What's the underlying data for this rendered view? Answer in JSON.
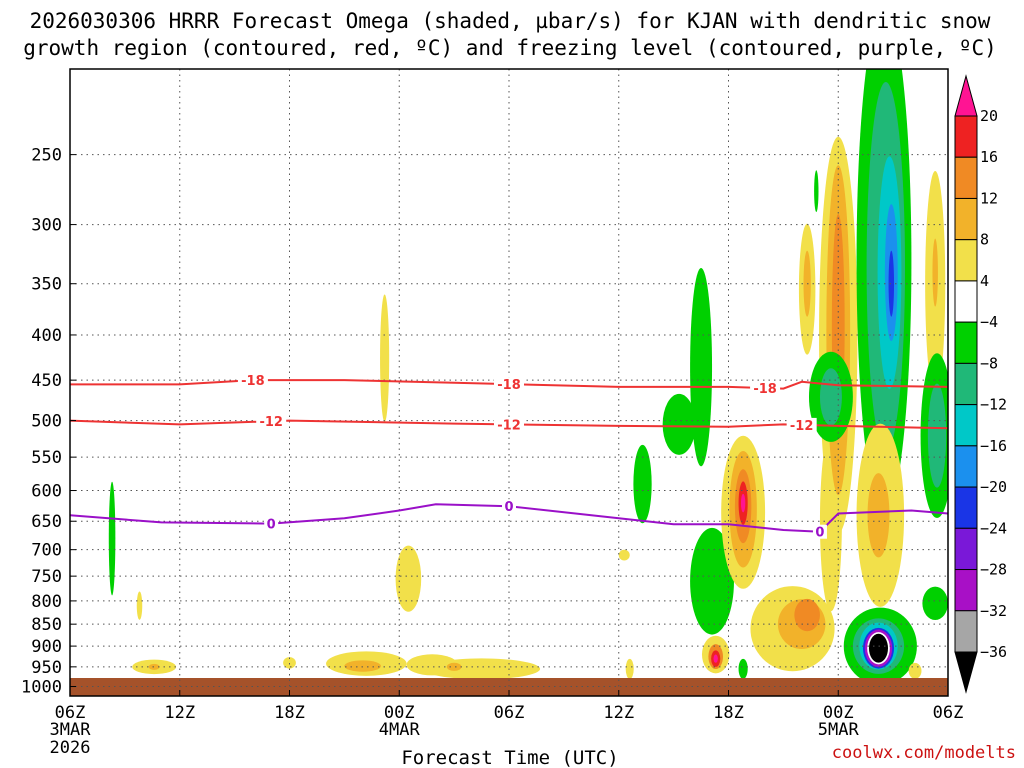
{
  "chart_data": {
    "type": "heatmap",
    "title_line1": "2026030306 HRRR Forecast Omega (shaded, µbar/s) for KJAN with dendritic snow",
    "title_line2": "growth region (contoured, red, ºC) and freezing level (contoured, purple, ºC)",
    "xlabel": "Forecast Time (UTC)",
    "credit": "coolwx.com/modelts",
    "x_hours": [
      0,
      6,
      12,
      18,
      24,
      30,
      36,
      42,
      48
    ],
    "x_ticks": [
      {
        "label": "06Z",
        "sub1": "3MAR",
        "sub2": "2026"
      },
      {
        "label": "12Z",
        "sub1": "",
        "sub2": ""
      },
      {
        "label": "18Z",
        "sub1": "",
        "sub2": ""
      },
      {
        "label": "00Z",
        "sub1": "4MAR",
        "sub2": ""
      },
      {
        "label": "06Z",
        "sub1": "",
        "sub2": ""
      },
      {
        "label": "12Z",
        "sub1": "",
        "sub2": ""
      },
      {
        "label": "18Z",
        "sub1": "",
        "sub2": ""
      },
      {
        "label": "00Z",
        "sub1": "5MAR",
        "sub2": ""
      },
      {
        "label": "06Z",
        "sub1": "",
        "sub2": ""
      }
    ],
    "y_levels_hpa": [
      1000,
      950,
      900,
      850,
      800,
      750,
      700,
      650,
      600,
      550,
      500,
      450,
      400,
      350,
      300,
      250
    ],
    "y_labels": [
      "1000",
      "950",
      "900",
      "850",
      "800",
      "750",
      "700",
      "650",
      "600",
      "550",
      "500",
      "450",
      "400",
      "350",
      "300",
      "250"
    ],
    "pressure_range_hpa": [
      1025,
      200
    ],
    "colorbar": {
      "labels": [
        "20",
        "16",
        "12",
        "8",
        "4",
        "−4",
        "−8",
        "−12",
        "−16",
        "−20",
        "−24",
        "−28",
        "−32",
        "−36"
      ],
      "colors": [
        "#ff1493",
        "#ee2222",
        "#f08a24",
        "#f2b22a",
        "#f2e04a",
        "#ffffff",
        "#00d000",
        "#20b878",
        "#00c8c8",
        "#1b90ee",
        "#1a35e6",
        "#7a18d8",
        "#a810c6",
        "#a6a6a6",
        "#000000"
      ]
    },
    "contours": [
      {
        "name": "-18C (red)",
        "label": "-18",
        "color": "#ee3333",
        "points": [
          [
            0,
            455
          ],
          [
            6,
            455
          ],
          [
            10,
            450
          ],
          [
            15,
            450
          ],
          [
            21,
            453
          ],
          [
            30,
            458
          ],
          [
            36,
            458
          ],
          [
            39,
            460
          ],
          [
            40,
            452
          ],
          [
            42,
            456
          ],
          [
            48,
            458
          ]
        ],
        "label_hours": [
          10,
          24,
          38
        ]
      },
      {
        "name": "-12C (red)",
        "label": "-12",
        "color": "#ee3333",
        "points": [
          [
            0,
            500
          ],
          [
            6,
            505
          ],
          [
            12,
            500
          ],
          [
            21,
            504
          ],
          [
            30,
            507
          ],
          [
            36,
            508
          ],
          [
            39,
            505
          ],
          [
            42,
            507
          ],
          [
            48,
            510
          ]
        ],
        "label_hours": [
          11,
          24,
          40
        ]
      },
      {
        "name": "0C freezing level (purple)",
        "label": "0",
        "color": "#9a10c8",
        "points": [
          [
            0,
            640
          ],
          [
            5,
            652
          ],
          [
            11,
            654
          ],
          [
            15,
            645
          ],
          [
            18,
            632
          ],
          [
            20,
            622
          ],
          [
            24,
            625
          ],
          [
            30,
            645
          ],
          [
            33,
            655
          ],
          [
            36,
            655
          ],
          [
            39,
            665
          ],
          [
            41,
            668
          ],
          [
            42,
            637
          ],
          [
            46,
            632
          ],
          [
            48,
            637
          ]
        ],
        "label_hours": [
          11,
          24,
          41
        ]
      }
    ],
    "omega_blobs": [
      {
        "t": 2.3,
        "p": 680,
        "rx": 0.18,
        "ry": 100,
        "color": "#00d000"
      },
      {
        "t": 3.8,
        "p": 810,
        "rx": 0.15,
        "ry": 30,
        "color": "#f2e04a"
      },
      {
        "t": 4.6,
        "p": 950,
        "rx": 1.2,
        "ry": 18,
        "color": "#f2e04a"
      },
      {
        "t": 4.6,
        "p": 950,
        "rx": 0.3,
        "ry": 7,
        "color": "#f2b22a"
      },
      {
        "t": 12.0,
        "p": 940,
        "rx": 0.35,
        "ry": 14,
        "color": "#f2e04a"
      },
      {
        "t": 17.2,
        "p": 425,
        "rx": 0.25,
        "ry": 70,
        "color": "#f2e04a"
      },
      {
        "t": 18.5,
        "p": 755,
        "rx": 0.7,
        "ry": 65,
        "color": "#f2e04a"
      },
      {
        "t": 16.2,
        "p": 942,
        "rx": 2.2,
        "ry": 30,
        "color": "#f2e04a"
      },
      {
        "t": 16.0,
        "p": 948,
        "rx": 1.0,
        "ry": 14,
        "color": "#f2b22a"
      },
      {
        "t": 19.8,
        "p": 945,
        "rx": 1.4,
        "ry": 26,
        "color": "#f2e04a"
      },
      {
        "t": 22.5,
        "p": 955,
        "rx": 3.2,
        "ry": 26,
        "color": "#f2e04a"
      },
      {
        "t": 21.0,
        "p": 950,
        "rx": 0.4,
        "ry": 10,
        "color": "#f2b22a"
      },
      {
        "t": 30.3,
        "p": 710,
        "rx": 0.3,
        "ry": 10,
        "color": "#f2e04a"
      },
      {
        "t": 30.6,
        "p": 955,
        "rx": 0.22,
        "ry": 25,
        "color": "#f2e04a"
      },
      {
        "t": 33.3,
        "p": 505,
        "rx": 0.9,
        "ry": 40,
        "color": "#00d000"
      },
      {
        "t": 31.3,
        "p": 590,
        "rx": 0.5,
        "ry": 60,
        "color": "#00d000"
      },
      {
        "t": 34.5,
        "p": 435,
        "rx": 0.6,
        "ry": 110,
        "color": "#00d000"
      },
      {
        "t": 35.1,
        "p": 760,
        "rx": 1.2,
        "ry": 105,
        "color": "#00d000"
      },
      {
        "t": 36.8,
        "p": 635,
        "rx": 1.2,
        "ry": 125,
        "color": "#f2e04a"
      },
      {
        "t": 36.8,
        "p": 630,
        "rx": 0.75,
        "ry": 95,
        "color": "#f2b22a"
      },
      {
        "t": 36.8,
        "p": 625,
        "rx": 0.45,
        "ry": 60,
        "color": "#f08a24"
      },
      {
        "t": 36.8,
        "p": 620,
        "rx": 0.25,
        "ry": 35,
        "color": "#ee2222"
      },
      {
        "t": 36.8,
        "p": 620,
        "rx": 0.12,
        "ry": 15,
        "color": "#ff1493"
      },
      {
        "t": 35.3,
        "p": 920,
        "rx": 0.75,
        "ry": 45,
        "color": "#f2e04a"
      },
      {
        "t": 35.3,
        "p": 925,
        "rx": 0.4,
        "ry": 30,
        "color": "#f08a24"
      },
      {
        "t": 35.3,
        "p": 930,
        "rx": 0.25,
        "ry": 20,
        "color": "#ee2222"
      },
      {
        "t": 35.3,
        "p": 930,
        "rx": 0.12,
        "ry": 10,
        "color": "#ff1493"
      },
      {
        "t": 36.8,
        "p": 955,
        "rx": 0.25,
        "ry": 25,
        "color": "#00d000"
      },
      {
        "t": 39.5,
        "p": 860,
        "rx": 2.3,
        "ry": 95,
        "color": "#f2e04a"
      },
      {
        "t": 40.0,
        "p": 850,
        "rx": 1.3,
        "ry": 55,
        "color": "#f2b22a"
      },
      {
        "t": 40.3,
        "p": 830,
        "rx": 0.7,
        "ry": 35,
        "color": "#f08a24"
      },
      {
        "t": 41.6,
        "p": 650,
        "rx": 0.6,
        "ry": 150,
        "color": "#f2e04a"
      },
      {
        "t": 42.0,
        "p": 360,
        "rx": 0.6,
        "ry": 90,
        "color": "#f2e04a"
      },
      {
        "t": 40.3,
        "p": 355,
        "rx": 0.45,
        "ry": 60,
        "color": "#f2e04a"
      },
      {
        "t": 40.3,
        "p": 350,
        "rx": 0.2,
        "ry": 30,
        "color": "#f2b22a"
      },
      {
        "t": 42.0,
        "p": 400,
        "rx": 1.05,
        "ry": 190,
        "color": "#f2e04a"
      },
      {
        "t": 42.0,
        "p": 395,
        "rx": 0.65,
        "ry": 160,
        "color": "#f2b22a"
      },
      {
        "t": 42.0,
        "p": 390,
        "rx": 0.35,
        "ry": 110,
        "color": "#f08a24"
      },
      {
        "t": 41.6,
        "p": 470,
        "rx": 1.2,
        "ry": 55,
        "color": "#00d000"
      },
      {
        "t": 41.6,
        "p": 470,
        "rx": 0.6,
        "ry": 35,
        "color": "#20b878"
      },
      {
        "t": 40.8,
        "p": 275,
        "rx": 0.12,
        "ry": 15,
        "color": "#00d000"
      },
      {
        "t": 44.5,
        "p": 330,
        "rx": 1.5,
        "ry": 230,
        "color": "#00d000"
      },
      {
        "t": 44.6,
        "p": 335,
        "rx": 1.05,
        "ry": 150,
        "color": "#20b878"
      },
      {
        "t": 44.8,
        "p": 340,
        "rx": 0.65,
        "ry": 100,
        "color": "#00c8c8"
      },
      {
        "t": 44.9,
        "p": 340,
        "rx": 0.35,
        "ry": 60,
        "color": "#1b90ee"
      },
      {
        "t": 44.9,
        "p": 350,
        "rx": 0.15,
        "ry": 30,
        "color": "#1a35e6"
      },
      {
        "t": 47.3,
        "p": 350,
        "rx": 0.55,
        "ry": 100,
        "color": "#f2e04a"
      },
      {
        "t": 47.3,
        "p": 340,
        "rx": 0.15,
        "ry": 30,
        "color": "#f2b22a"
      },
      {
        "t": 47.4,
        "p": 520,
        "rx": 0.9,
        "ry": 110,
        "color": "#00d000"
      },
      {
        "t": 47.4,
        "p": 520,
        "rx": 0.5,
        "ry": 70,
        "color": "#20b878"
      },
      {
        "t": 44.3,
        "p": 640,
        "rx": 1.3,
        "ry": 150,
        "color": "#f2e04a"
      },
      {
        "t": 44.2,
        "p": 640,
        "rx": 0.6,
        "ry": 70,
        "color": "#f2b22a"
      },
      {
        "t": 44.3,
        "p": 900,
        "rx": 2.0,
        "ry": 90,
        "color": "#00d000"
      },
      {
        "t": 44.2,
        "p": 900,
        "rx": 1.4,
        "ry": 65,
        "color": "#20b878"
      },
      {
        "t": 44.2,
        "p": 900,
        "rx": 1.05,
        "ry": 55,
        "color": "#00c8c8"
      },
      {
        "t": 44.2,
        "p": 905,
        "rx": 0.85,
        "ry": 48,
        "color": "#1a35e6"
      },
      {
        "t": 44.2,
        "p": 905,
        "rx": 0.75,
        "ry": 44,
        "color": "#a810c6"
      },
      {
        "t": 44.2,
        "p": 905,
        "rx": 0.62,
        "ry": 38,
        "color": "#ffffff"
      },
      {
        "t": 44.2,
        "p": 905,
        "rx": 0.52,
        "ry": 34,
        "color": "#000000"
      },
      {
        "t": 46.2,
        "p": 960,
        "rx": 0.35,
        "ry": 20,
        "color": "#f2e04a"
      },
      {
        "t": 47.3,
        "p": 805,
        "rx": 0.7,
        "ry": 35,
        "color": "#00d000"
      }
    ]
  }
}
